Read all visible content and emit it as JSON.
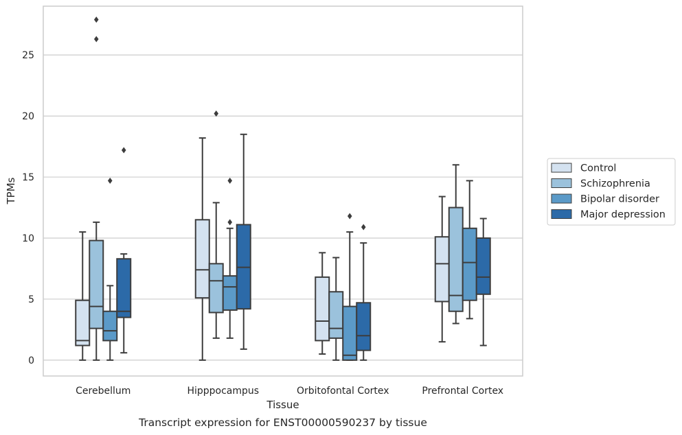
{
  "chart_data": {
    "type": "box",
    "title": "Transcript expression for ENST00000590237 by tissue",
    "xlabel": "Tissue",
    "ylabel": "TPMs",
    "ylim": [
      -1.3,
      29.0
    ],
    "yticks": [
      0,
      5,
      10,
      15,
      20,
      25
    ],
    "grid": "horizontal",
    "legend_position": "right",
    "categories": [
      "Cerebellum",
      "Hipppocampus",
      "Orbitofontal Cortex",
      "Prefrontal Cortex"
    ],
    "series": [
      {
        "name": "Control",
        "color": "#d4e2f0",
        "boxes": [
          {
            "whislo": 0.0,
            "q1": 1.2,
            "med": 1.6,
            "q3": 4.9,
            "whishi": 10.5,
            "fliers": []
          },
          {
            "whislo": 0.0,
            "q1": 5.1,
            "med": 7.4,
            "q3": 11.5,
            "whishi": 18.2,
            "fliers": []
          },
          {
            "whislo": 0.5,
            "q1": 1.6,
            "med": 3.2,
            "q3": 6.8,
            "whishi": 8.8,
            "fliers": []
          },
          {
            "whislo": 1.5,
            "q1": 4.8,
            "med": 7.9,
            "q3": 10.1,
            "whishi": 13.4,
            "fliers": []
          }
        ]
      },
      {
        "name": "Schizophrenia",
        "color": "#9bc2dc",
        "boxes": [
          {
            "whislo": 0.0,
            "q1": 2.6,
            "med": 4.4,
            "q3": 9.8,
            "whishi": 11.3,
            "fliers": [
              26.3,
              27.9
            ]
          },
          {
            "whislo": 1.8,
            "q1": 3.9,
            "med": 6.5,
            "q3": 7.9,
            "whishi": 12.9,
            "fliers": [
              20.2
            ]
          },
          {
            "whislo": 0.0,
            "q1": 1.8,
            "med": 2.6,
            "q3": 5.6,
            "whishi": 8.4,
            "fliers": []
          },
          {
            "whislo": 3.0,
            "q1": 4.0,
            "med": 5.3,
            "q3": 12.5,
            "whishi": 16.0,
            "fliers": []
          }
        ]
      },
      {
        "name": "Bipolar disorder",
        "color": "#5b9ac8",
        "boxes": [
          {
            "whislo": 0.0,
            "q1": 1.6,
            "med": 2.4,
            "q3": 4.0,
            "whishi": 6.1,
            "fliers": [
              14.7
            ]
          },
          {
            "whislo": 1.8,
            "q1": 4.1,
            "med": 6.0,
            "q3": 6.9,
            "whishi": 10.8,
            "fliers": [
              11.3,
              14.7
            ]
          },
          {
            "whislo": 0.0,
            "q1": 0.0,
            "med": 0.4,
            "q3": 4.4,
            "whishi": 10.5,
            "fliers": [
              11.8
            ]
          },
          {
            "whislo": 3.4,
            "q1": 4.9,
            "med": 8.0,
            "q3": 10.8,
            "whishi": 14.7,
            "fliers": []
          }
        ]
      },
      {
        "name": "Major depression",
        "color": "#2c6aa8",
        "boxes": [
          {
            "whislo": 0.6,
            "q1": 3.5,
            "med": 4.0,
            "q3": 8.3,
            "whishi": 8.7,
            "fliers": [
              17.2
            ]
          },
          {
            "whislo": 0.9,
            "q1": 4.2,
            "med": 7.6,
            "q3": 11.1,
            "whishi": 18.5,
            "fliers": []
          },
          {
            "whislo": 0.0,
            "q1": 0.8,
            "med": 2.0,
            "q3": 4.7,
            "whishi": 9.6,
            "fliers": [
              10.9
            ]
          },
          {
            "whislo": 1.2,
            "q1": 5.4,
            "med": 6.8,
            "q3": 10.0,
            "whishi": 11.6,
            "fliers": []
          }
        ]
      }
    ]
  }
}
